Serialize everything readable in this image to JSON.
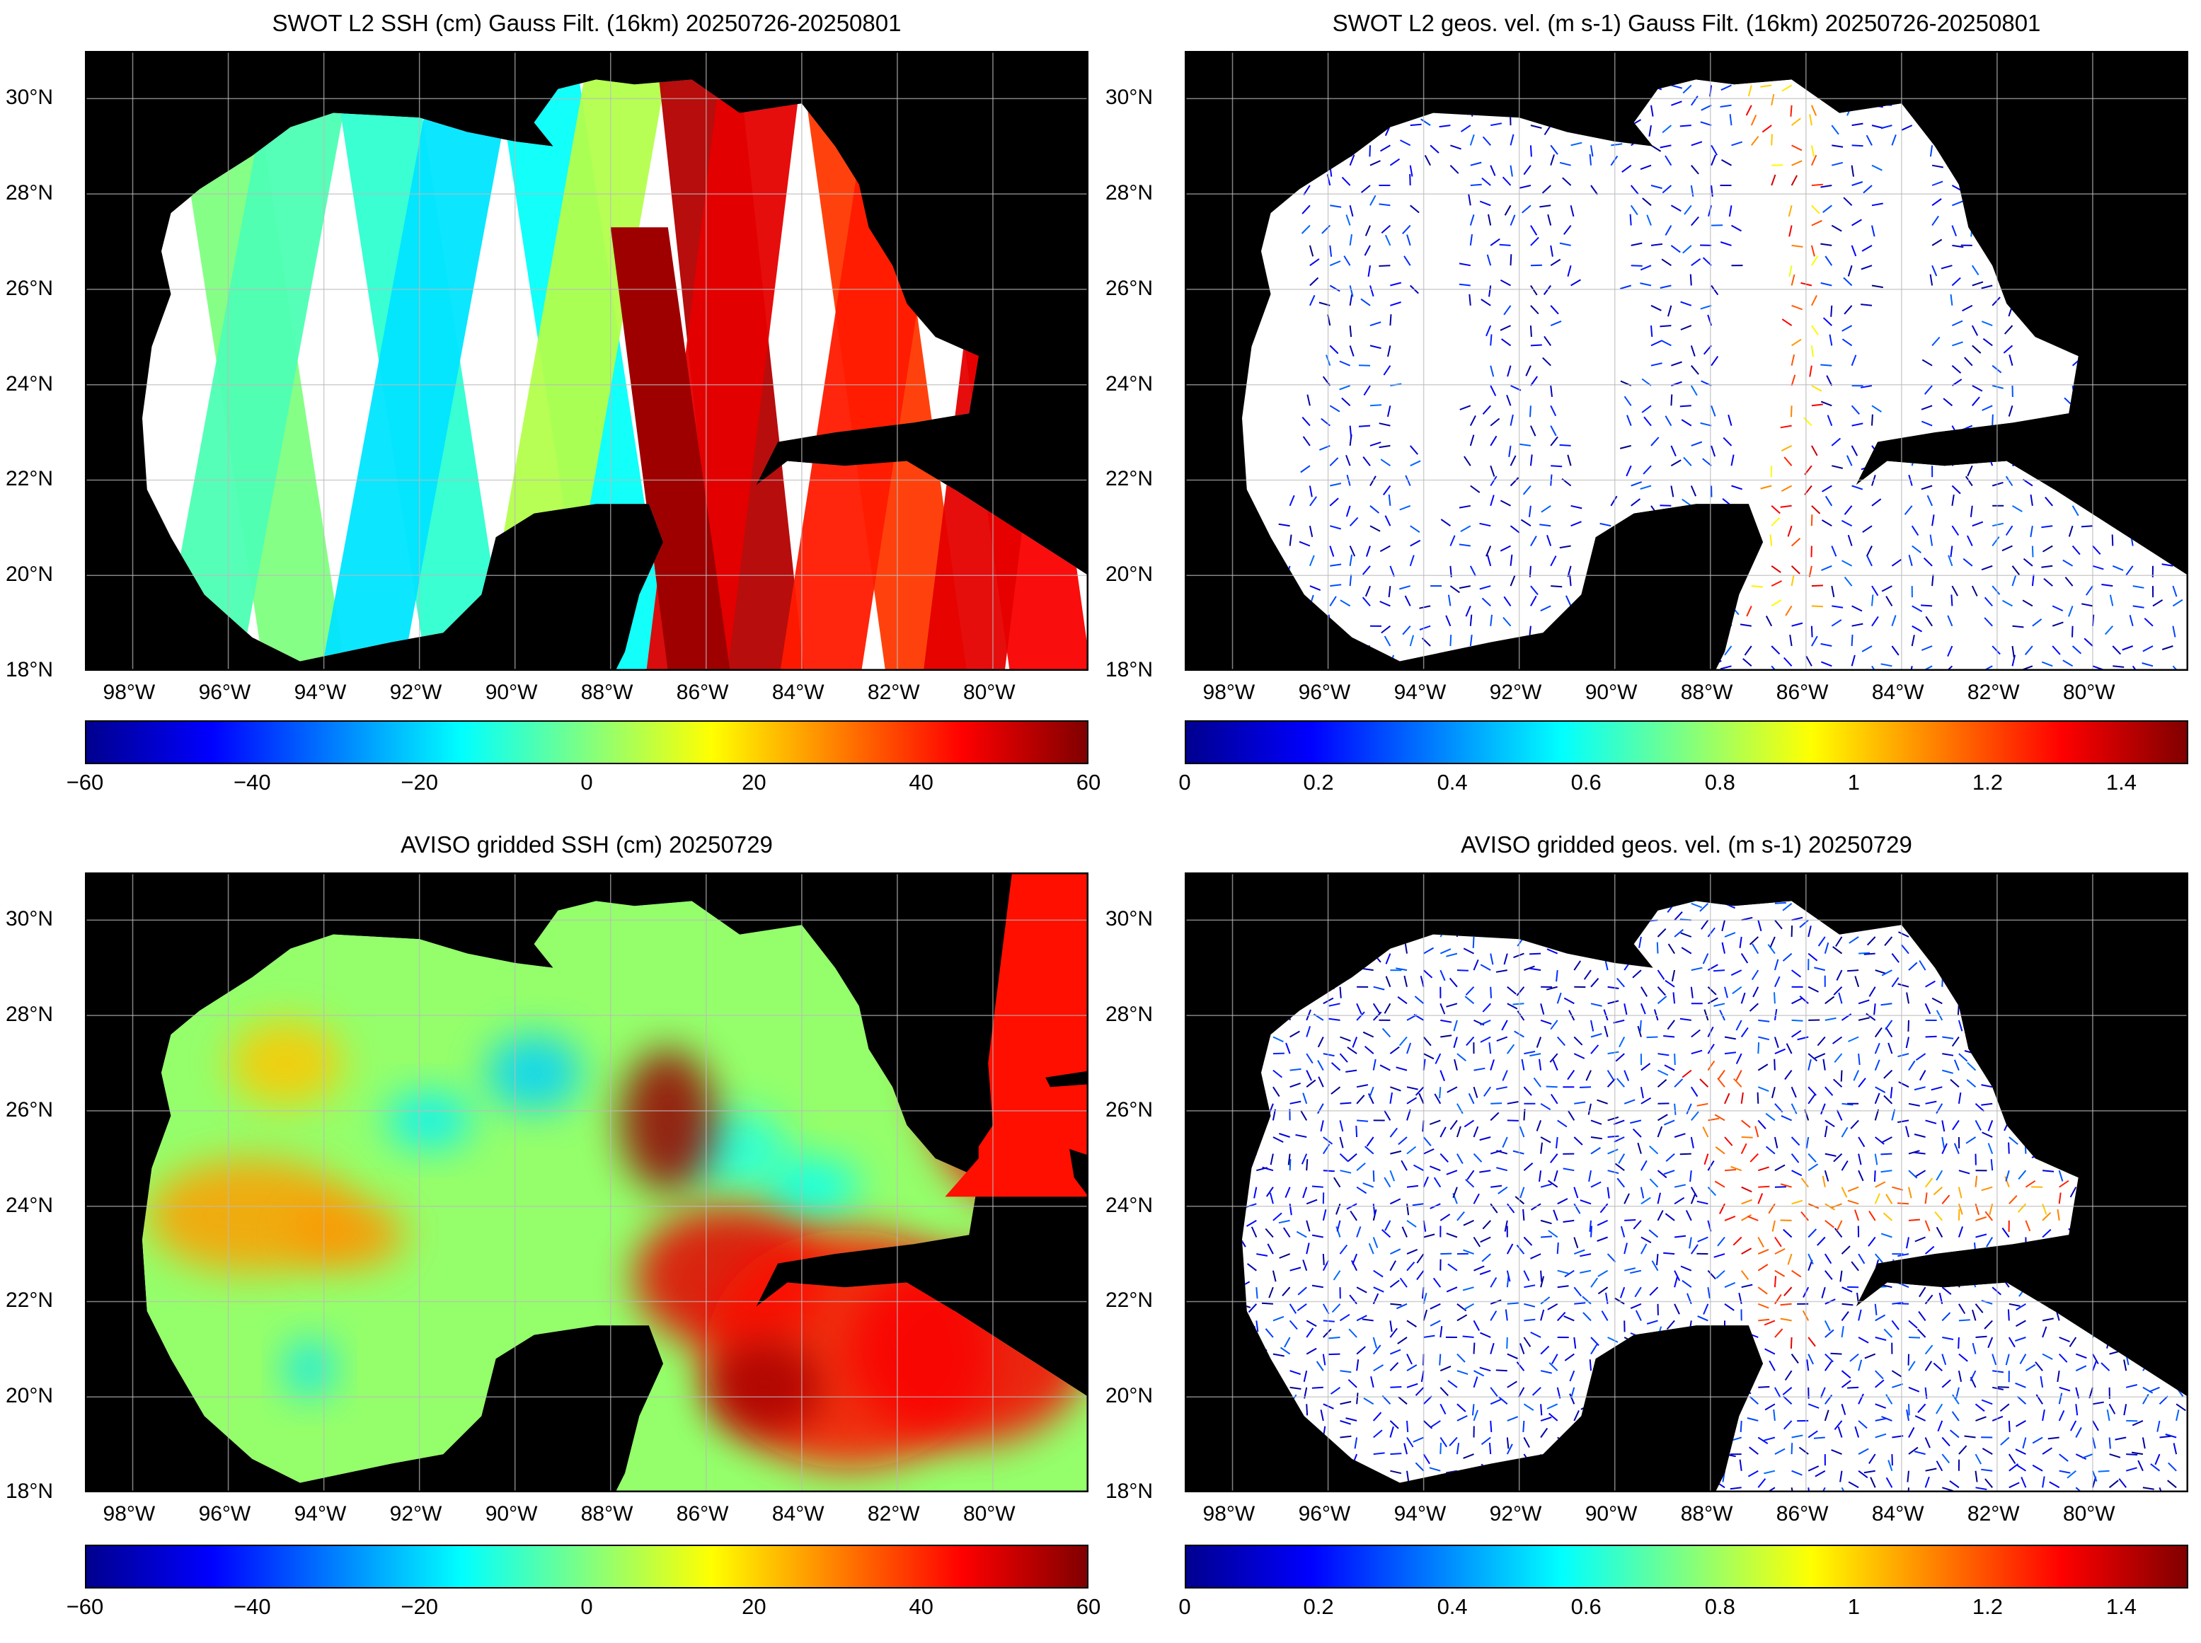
{
  "panels": [
    {
      "id": "swot-ssh",
      "title": "SWOT L2 SSH (cm) Gauss Filt. (16km) 20250726-20250801",
      "field": "ssh-swaths",
      "colorbar": {
        "ticks": [
          "−60",
          "−40",
          "−20",
          "0",
          "20",
          "40",
          "60"
        ],
        "vmin": -60,
        "vmax": 60
      }
    },
    {
      "id": "swot-vel",
      "title": "SWOT L2 geos. vel. (m s-1) Gauss Filt. (16km) 20250726-20250801",
      "field": "vel-swaths",
      "colorbar": {
        "ticks": [
          "0",
          "0.2",
          "0.4",
          "0.6",
          "0.8",
          "1",
          "1.2",
          "1.4"
        ],
        "vmin": 0,
        "vmax": 1.5
      }
    },
    {
      "id": "aviso-ssh",
      "title": "AVISO gridded SSH (cm) 20250729",
      "field": "ssh-grid",
      "colorbar": {
        "ticks": [
          "−60",
          "−40",
          "−20",
          "0",
          "20",
          "40",
          "60"
        ],
        "vmin": -60,
        "vmax": 60
      }
    },
    {
      "id": "aviso-vel",
      "title": "AVISO gridded geos. vel. (m s-1)  20250729",
      "field": "vel-grid",
      "colorbar": {
        "ticks": [
          "0",
          "0.2",
          "0.4",
          "0.6",
          "0.8",
          "1",
          "1.2",
          "1.4"
        ],
        "vmin": 0,
        "vmax": 1.5
      }
    }
  ],
  "map": {
    "lat_labels": [
      "30°N",
      "28°N",
      "26°N",
      "24°N",
      "22°N",
      "20°N",
      "18°N"
    ],
    "lon_labels": [
      "98°W",
      "96°W",
      "94°W",
      "92°W",
      "90°W",
      "88°W",
      "86°W",
      "84°W",
      "82°W",
      "80°W"
    ],
    "lat_range": [
      18,
      31
    ],
    "lon_range": [
      -99,
      -78
    ],
    "land_color": "#000000",
    "grid_color": "#bbbbbb",
    "colormap": "jet"
  }
}
